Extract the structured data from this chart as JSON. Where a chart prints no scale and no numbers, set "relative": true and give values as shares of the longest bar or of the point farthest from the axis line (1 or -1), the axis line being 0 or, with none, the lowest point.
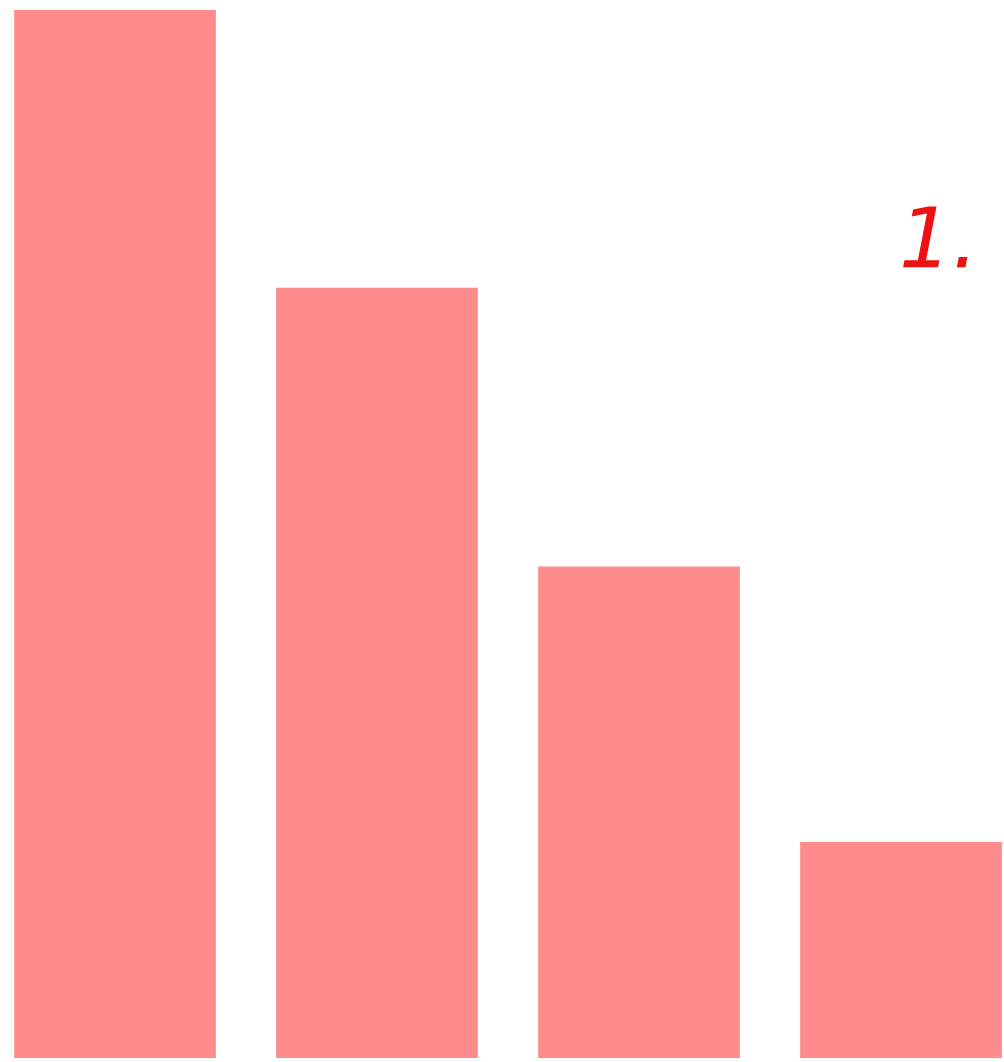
{
  "chart_data": {
    "type": "bar",
    "relative": true,
    "categories": [
      null,
      null,
      null,
      null
    ],
    "values": [
      1,
      0.735,
      0.469,
      0.206
    ],
    "color": "#ff8c8c",
    "annotations": [
      "1."
    ]
  }
}
